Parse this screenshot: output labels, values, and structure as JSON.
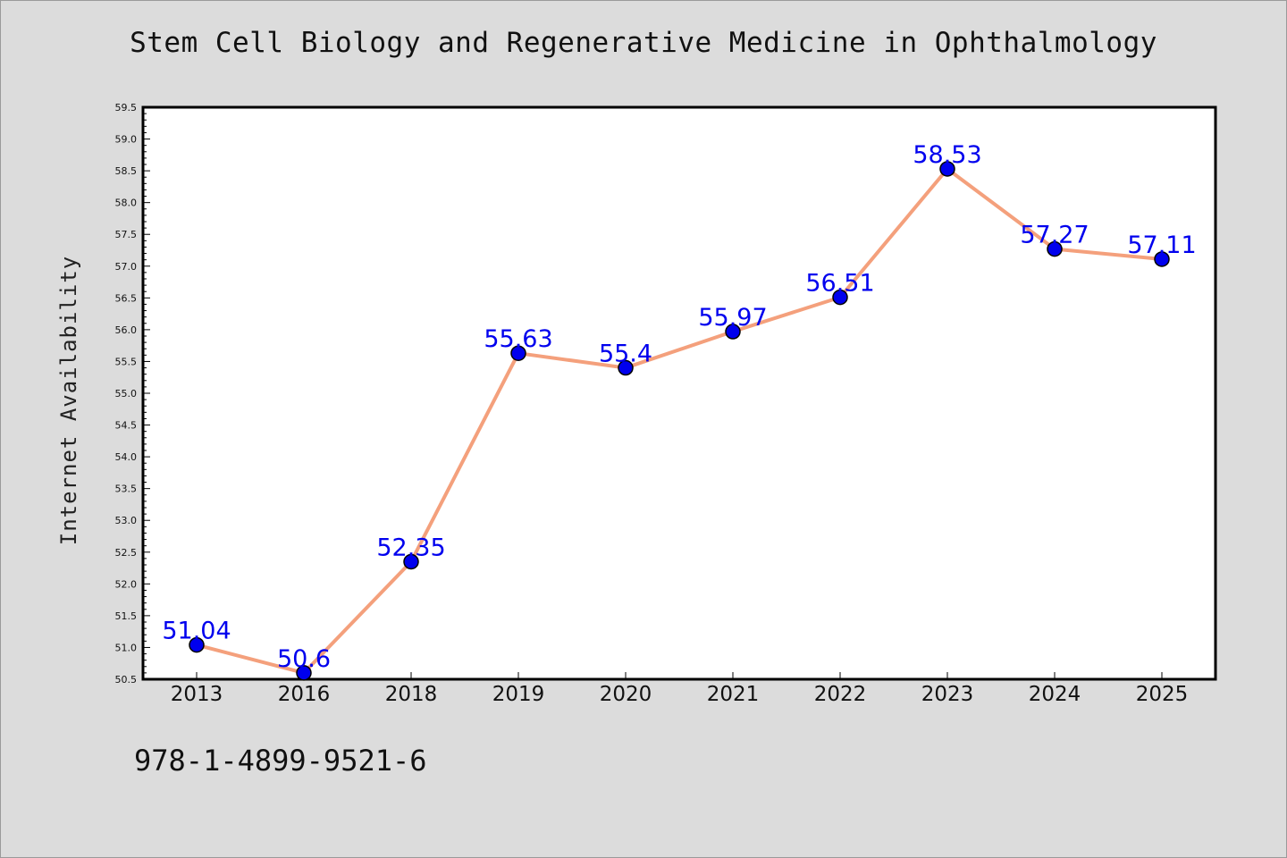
{
  "chart_data": {
    "type": "line",
    "title": "Stem Cell Biology and Regenerative Medicine in Ophthalmology",
    "xlabel": "",
    "ylabel": "Internet Availability",
    "categories": [
      "2013",
      "2016",
      "2018",
      "2019",
      "2020",
      "2021",
      "2022",
      "2023",
      "2024",
      "2025"
    ],
    "values": [
      51.04,
      50.6,
      52.35,
      55.63,
      55.4,
      55.97,
      56.51,
      58.53,
      57.27,
      57.11
    ],
    "data_labels": [
      "51.04",
      "50.6",
      "52.35",
      "55.63",
      "55.4",
      "55.97",
      "56.51",
      "58.53",
      "57.27",
      "57.11"
    ],
    "ylim": [
      50.5,
      59.5
    ],
    "yticks": [
      "50.5",
      "51.0",
      "51.5",
      "52.0",
      "52.5",
      "53.0",
      "53.5",
      "54.0",
      "54.5",
      "55.0",
      "55.5",
      "56.0",
      "56.5",
      "57.0",
      "57.5",
      "58.0",
      "58.5",
      "59.0",
      "59.5"
    ],
    "grid": false,
    "legend": false,
    "colors": {
      "line": "#f4a07c",
      "marker": "#0000ee",
      "marker_edge": "#000000",
      "label": "#0000ee",
      "background": "#dcdcdc",
      "plot_background": "#ffffff"
    }
  },
  "footer": {
    "isbn": "978-1-4899-9521-6"
  }
}
